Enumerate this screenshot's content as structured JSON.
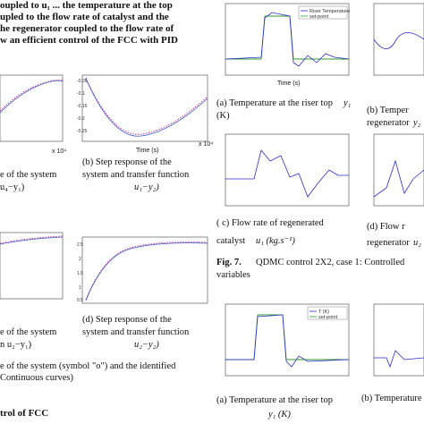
{
  "left_column": {
    "intro_lines": [
      "upled to the flow rate of catalyst and the",
      "he regenerator coupled to the flow rate of",
      "w an efficient control of the FCC with PID"
    ],
    "intro_top": "oupled to u₁ ... the temperature at the top",
    "fig_b_caption": [
      "(b)   Step response of the",
      "system and transfer function"
    ],
    "fig_b_math": "u₁−y₂)",
    "fig_a_caption": [
      "e of the system",
      "u₄−y₁)"
    ],
    "fig_c_caption": [
      "e of the system",
      "n u₂−y₁)"
    ],
    "fig_d_caption": [
      "(d)   Step response of the",
      "system and transfer function"
    ],
    "fig_d_math": "u₂−y₂)",
    "bottom_caption": [
      "e of the system (symbol \"o\") and the identified",
      "Continuous curves)"
    ],
    "section_heading": "trol of FCC",
    "time_label": "Time (s)",
    "x_exp_b": "x 10⁴",
    "x_exp_a": "x 10⁴"
  },
  "right_column": {
    "fig7_a_caption": [
      "(a) Temperature at the riser top",
      "(K)"
    ],
    "fig7_a_math": "y₁",
    "fig7_b_caption": [
      "(b)     Temper",
      "regenerator"
    ],
    "fig7_b_math": "y₂",
    "fig7_c_caption": [
      "( c)  Flow  rate  of  regenerated",
      "catalyst"
    ],
    "fig7_c_math": "u₁ (kg.s⁻¹)",
    "fig7_d_caption": [
      "(d)     Flow  r",
      "regenerator"
    ],
    "fig7_d_math": "u₂",
    "fig7_label": "Fig.  7.",
    "fig7_text": "QDMC  control  2X2,  case  1:  Controlled",
    "fig7_text2": "variables",
    "fig8_a_caption": [
      "(a) Temperature at the riser top"
    ],
    "fig8_a_math": "y₁ (K)",
    "fig8_b_caption": [
      "(b) Temperature"
    ],
    "legend_a": [
      "Riser Temperature",
      "set-point"
    ],
    "legend_e": [
      "T (K)",
      "set-point"
    ],
    "time_label": "Time (s)",
    "x_exp": "x 10⁴"
  },
  "colors": {
    "line": "#2b2bd6",
    "setpoint": "#2e9e2e",
    "marker": "#d23c8c",
    "fit": "#3a5bd0"
  }
}
